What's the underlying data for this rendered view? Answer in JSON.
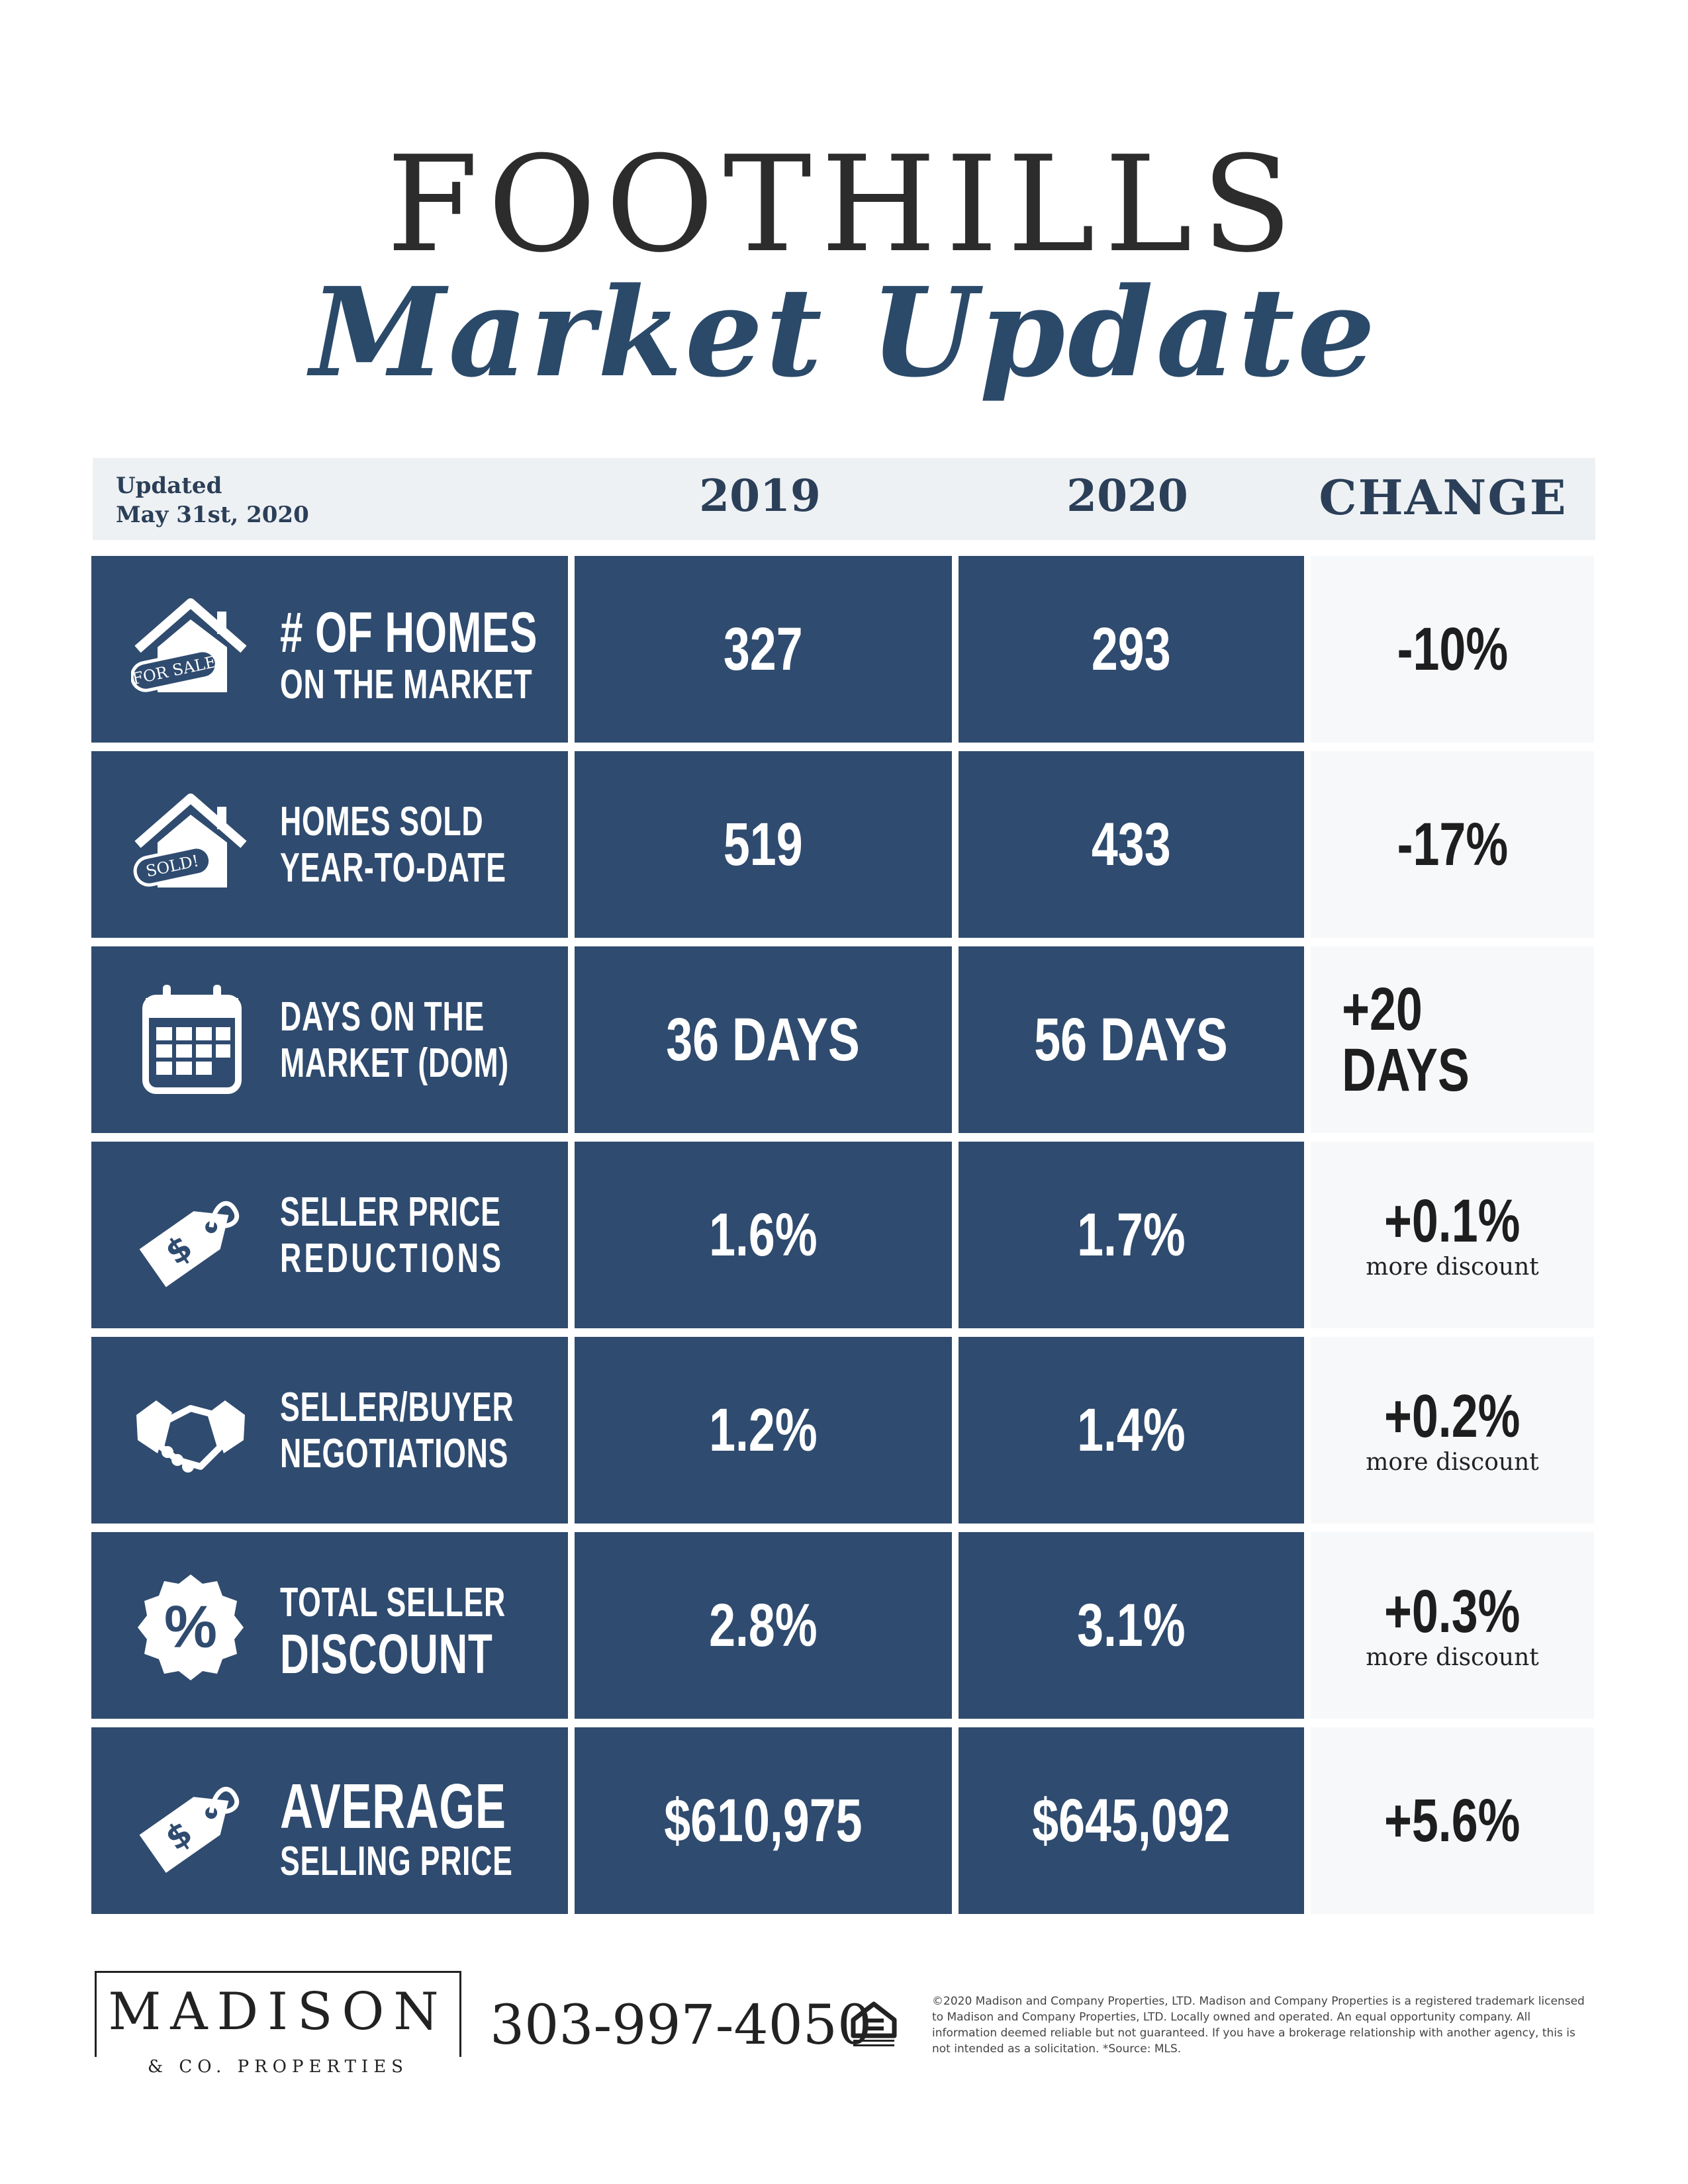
{
  "title": {
    "line1": "FOOTHILLS",
    "line2": "Market Update"
  },
  "header": {
    "updated_line1": "Updated",
    "updated_line2": "May 31st, 2020",
    "col_2019": "2019",
    "col_2020": "2020",
    "col_change": "CHANGE"
  },
  "rows": [
    {
      "icon": "house-for-sale-icon",
      "tag": "FOR SALE",
      "label_line1": "# OF HOMES",
      "label_line2": "ON THE MARKET",
      "v2019": "327",
      "v2020": "293",
      "change": "-10%",
      "note": ""
    },
    {
      "icon": "house-sold-icon",
      "tag": "SOLD!",
      "label_line1": "HOMES SOLD",
      "label_line2": "YEAR-TO-DATE",
      "v2019": "519",
      "v2020": "433",
      "change": "-17%",
      "note": ""
    },
    {
      "icon": "calendar-icon",
      "label_line1": "DAYS ON THE",
      "label_line2": "MARKET (DOM)",
      "v2019": "36 DAYS",
      "v2020": "56 DAYS",
      "change": "+20 DAYS",
      "note": ""
    },
    {
      "icon": "price-tag-icon",
      "label_line1": "SELLER PRICE",
      "label_line2": "REDUCTIONS",
      "v2019": "1.6%",
      "v2020": "1.7%",
      "change": "+0.1%",
      "note": "more discount"
    },
    {
      "icon": "handshake-icon",
      "label_line1": "SELLER/BUYER",
      "label_line2": "NEGOTIATIONS",
      "v2019": "1.2%",
      "v2020": "1.4%",
      "change": "+0.2%",
      "note": "more discount"
    },
    {
      "icon": "percent-badge-icon",
      "label_line1": "TOTAL SELLER",
      "label_line2": "DISCOUNT",
      "v2019": "2.8%",
      "v2020": "3.1%",
      "change": "+0.3%",
      "note": "more discount"
    },
    {
      "icon": "price-tag-icon",
      "label_line1": "AVERAGE",
      "label_line2": "SELLING PRICE",
      "v2019": "$610,975",
      "v2020": "$645,092",
      "change": "+5.6%",
      "note": ""
    }
  ],
  "footer": {
    "logo_main": "MADISON",
    "logo_sub": "& CO. PROPERTIES",
    "phone": "303-997-4050",
    "eho_icon": "equal-housing-opportunity-icon",
    "disclaimer": "©2020 Madison and Company Properties, LTD. Madison and Company Properties is a registered trademark licensed to Madison and Company Properties, LTD. Locally owned and operated. An equal opportunity company. All information deemed reliable but not guaranteed. If you have a brokerage relationship with another agency, this is not intended as a solicitation. *Source: MLS."
  },
  "colors": {
    "navy": "#2f4b6f",
    "title_blue": "#2b4a6a",
    "header_band": "#eef1f4"
  }
}
